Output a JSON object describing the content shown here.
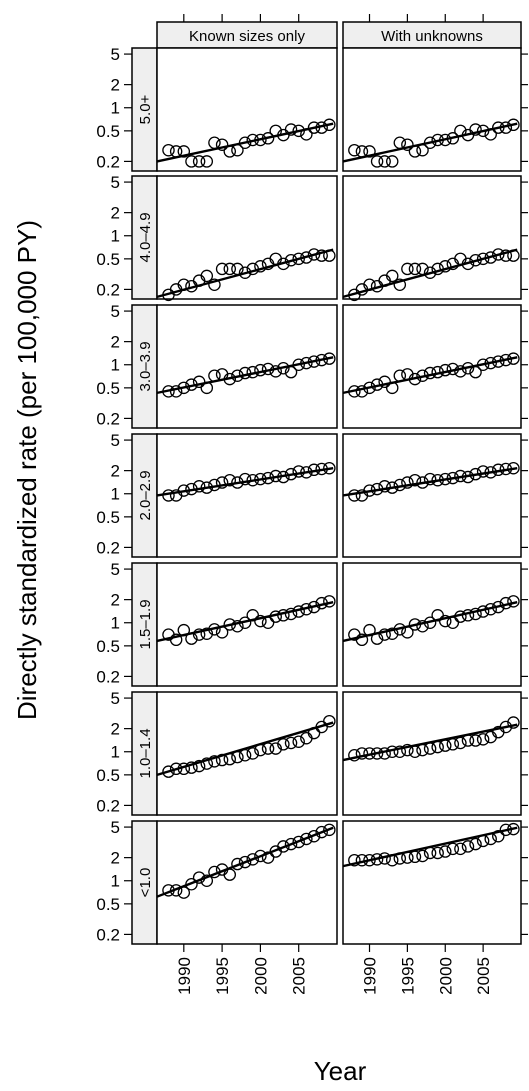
{
  "chart_data": {
    "type": "scatter",
    "xlabel": "Year",
    "ylabel": "Directly standardized rate (per 100,000 PY)",
    "y_scale": "log",
    "ylim": [
      0.15,
      6
    ],
    "xlim": [
      1986.5,
      2010
    ],
    "yticks": [
      0.2,
      0.5,
      1,
      2,
      5
    ],
    "ytick_labels": [
      "0.2",
      "0.5",
      "1",
      "2",
      "5"
    ],
    "xticks": [
      1990,
      1995,
      2000,
      2005
    ],
    "xtick_labels": [
      "1990",
      "1995",
      "2000",
      "2005"
    ],
    "columns": [
      "Known sizes only",
      "With unknowns"
    ],
    "rows": [
      "5.0+",
      "4.0–4.9",
      "3.0–3.9",
      "2.0–2.9",
      "1.5–1.9",
      "1.0–1.4",
      "<1.0"
    ],
    "years": [
      1988,
      1989,
      1990,
      1991,
      1992,
      1993,
      1994,
      1995,
      1996,
      1997,
      1998,
      1999,
      2000,
      2001,
      2002,
      2003,
      2004,
      2005,
      2006,
      2007,
      2008,
      2009
    ],
    "panels": [
      {
        "row": "5.0+",
        "column": "Known sizes only",
        "values": [
          0.28,
          0.27,
          0.27,
          0.2,
          0.2,
          0.2,
          0.35,
          0.33,
          0.27,
          0.28,
          0.35,
          0.38,
          0.38,
          0.4,
          0.5,
          0.44,
          0.52,
          0.5,
          0.45,
          0.55,
          0.55,
          0.6
        ],
        "fit": [
          0.2,
          0.62
        ]
      },
      {
        "row": "5.0+",
        "column": "With unknowns",
        "values": [
          0.28,
          0.27,
          0.27,
          0.2,
          0.2,
          0.2,
          0.35,
          0.33,
          0.27,
          0.28,
          0.35,
          0.38,
          0.38,
          0.4,
          0.5,
          0.44,
          0.52,
          0.5,
          0.45,
          0.55,
          0.55,
          0.6
        ],
        "fit": [
          0.2,
          0.62
        ]
      },
      {
        "row": "4.0–4.9",
        "column": "Known sizes only",
        "values": [
          0.17,
          0.2,
          0.23,
          0.22,
          0.26,
          0.3,
          0.23,
          0.37,
          0.37,
          0.37,
          0.33,
          0.37,
          0.4,
          0.43,
          0.5,
          0.43,
          0.48,
          0.5,
          0.52,
          0.57,
          0.55,
          0.55
        ],
        "fit": [
          0.16,
          0.66
        ]
      },
      {
        "row": "4.0–4.9",
        "column": "With unknowns",
        "values": [
          0.17,
          0.2,
          0.23,
          0.22,
          0.26,
          0.3,
          0.23,
          0.37,
          0.37,
          0.37,
          0.33,
          0.37,
          0.4,
          0.43,
          0.5,
          0.43,
          0.48,
          0.5,
          0.52,
          0.57,
          0.55,
          0.55
        ],
        "fit": [
          0.16,
          0.66
        ]
      },
      {
        "row": "3.0–3.9",
        "column": "Known sizes only",
        "values": [
          0.45,
          0.45,
          0.5,
          0.55,
          0.6,
          0.5,
          0.72,
          0.75,
          0.65,
          0.72,
          0.78,
          0.8,
          0.85,
          0.88,
          0.82,
          0.9,
          0.8,
          1.0,
          1.05,
          1.1,
          1.15,
          1.2
        ],
        "fit": [
          0.43,
          1.25
        ]
      },
      {
        "row": "3.0–3.9",
        "column": "With unknowns",
        "values": [
          0.45,
          0.45,
          0.5,
          0.55,
          0.6,
          0.5,
          0.72,
          0.75,
          0.65,
          0.72,
          0.78,
          0.8,
          0.85,
          0.88,
          0.82,
          0.9,
          0.8,
          1.0,
          1.05,
          1.1,
          1.15,
          1.2
        ],
        "fit": [
          0.43,
          1.25
        ]
      },
      {
        "row": "2.0–2.9",
        "column": "Known sizes only",
        "values": [
          0.95,
          0.95,
          1.1,
          1.15,
          1.25,
          1.2,
          1.3,
          1.4,
          1.5,
          1.4,
          1.55,
          1.5,
          1.55,
          1.6,
          1.7,
          1.65,
          1.8,
          1.95,
          1.9,
          2.05,
          2.1,
          2.15
        ],
        "fit": [
          0.95,
          2.15
        ]
      },
      {
        "row": "2.0–2.9",
        "column": "With unknowns",
        "values": [
          0.95,
          0.95,
          1.1,
          1.15,
          1.25,
          1.2,
          1.3,
          1.4,
          1.5,
          1.4,
          1.55,
          1.5,
          1.55,
          1.6,
          1.7,
          1.65,
          1.8,
          1.95,
          1.9,
          2.05,
          2.1,
          2.15
        ],
        "fit": [
          0.95,
          2.15
        ]
      },
      {
        "row": "1.5–1.9",
        "column": "Known sizes only",
        "values": [
          0.7,
          0.6,
          0.8,
          0.62,
          0.7,
          0.72,
          0.82,
          0.75,
          0.95,
          0.9,
          1.0,
          1.25,
          1.05,
          1.0,
          1.2,
          1.25,
          1.3,
          1.4,
          1.5,
          1.6,
          1.8,
          1.9
        ],
        "fit": [
          0.58,
          1.85
        ]
      },
      {
        "row": "1.5–1.9",
        "column": "With unknowns",
        "values": [
          0.7,
          0.6,
          0.8,
          0.62,
          0.7,
          0.72,
          0.82,
          0.75,
          0.95,
          0.9,
          1.0,
          1.25,
          1.05,
          1.0,
          1.2,
          1.25,
          1.3,
          1.4,
          1.5,
          1.6,
          1.8,
          1.9
        ],
        "fit": [
          0.58,
          1.85
        ]
      },
      {
        "row": "1.0–1.4",
        "column": "Known sizes only",
        "values": [
          0.55,
          0.6,
          0.6,
          0.62,
          0.65,
          0.7,
          0.75,
          0.78,
          0.8,
          0.85,
          0.9,
          0.95,
          1.05,
          1.1,
          1.1,
          1.25,
          1.3,
          1.35,
          1.5,
          1.75,
          2.1,
          2.5
        ],
        "fit": [
          0.5,
          2.4
        ]
      },
      {
        "row": "1.0–1.4",
        "column": "With unknowns",
        "values": [
          0.9,
          0.95,
          0.95,
          0.95,
          0.95,
          1.0,
          1.0,
          1.05,
          1.0,
          1.05,
          1.1,
          1.15,
          1.2,
          1.25,
          1.3,
          1.4,
          1.4,
          1.45,
          1.55,
          1.8,
          2.1,
          2.4
        ],
        "fit": [
          0.78,
          2.25
        ]
      },
      {
        "row": "<1.0",
        "column": "Known sizes only",
        "values": [
          0.75,
          0.75,
          0.7,
          0.9,
          1.1,
          1.0,
          1.3,
          1.4,
          1.2,
          1.65,
          1.75,
          1.9,
          2.1,
          2.0,
          2.4,
          2.8,
          3.0,
          3.2,
          3.5,
          3.8,
          4.3,
          4.6
        ],
        "fit": [
          0.62,
          4.9
        ]
      },
      {
        "row": "<1.0",
        "column": "With unknowns",
        "values": [
          1.85,
          1.85,
          1.85,
          1.9,
          1.95,
          1.85,
          1.95,
          2.0,
          2.05,
          2.1,
          2.3,
          2.3,
          2.4,
          2.6,
          2.6,
          2.8,
          3.0,
          3.3,
          3.5,
          3.8,
          4.6,
          4.7
        ],
        "fit": [
          1.55,
          4.9
        ]
      }
    ]
  }
}
